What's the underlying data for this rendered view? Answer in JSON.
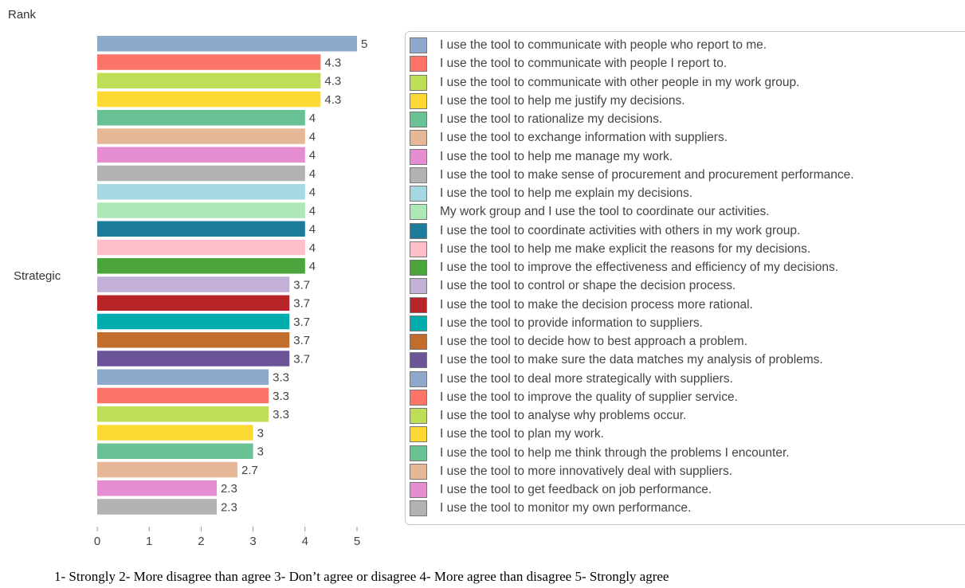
{
  "chart_data": {
    "type": "bar",
    "orientation": "horizontal",
    "ylabel": "Rank",
    "category_axis_label": "Strategic",
    "xlim": [
      0,
      5
    ],
    "xticks": [
      "0",
      "1",
      "2",
      "3",
      "4",
      "5"
    ],
    "grid": false,
    "legend_placement": "right",
    "series": [
      {
        "name": "I use the tool to communicate with people who report to me.",
        "value": 5,
        "label": "5",
        "color": "#8ea9cc"
      },
      {
        "name": "I use the tool to communicate with people I report to.",
        "value": 4.3,
        "label": "4.3",
        "color": "#fd7468"
      },
      {
        "name": "I use the tool to communicate with other people in my work group.",
        "value": 4.3,
        "label": "4.3",
        "color": "#bfde57"
      },
      {
        "name": "I use the tool to help me justify my decisions.",
        "value": 4.3,
        "label": "4.3",
        "color": "#fdda33"
      },
      {
        "name": "I use the tool to rationalize my decisions.",
        "value": 4,
        "label": "4",
        "color": "#68c294"
      },
      {
        "name": "I use the tool to exchange information with suppliers.",
        "value": 4,
        "label": "4",
        "color": "#e6b897"
      },
      {
        "name": "I use the tool to help me manage my work.",
        "value": 4,
        "label": "4",
        "color": "#e58dd0"
      },
      {
        "name": "I use the tool to make sense of procurement and procurement performance.",
        "value": 4,
        "label": "4",
        "color": "#b2b2b2"
      },
      {
        "name": "I use the tool to help me explain my decisions.",
        "value": 4,
        "label": "4",
        "color": "#a6d8e3"
      },
      {
        "name": "My work group and I use the tool to coordinate our activities.",
        "value": 4,
        "label": "4",
        "color": "#ade8b6"
      },
      {
        "name": "I use the tool to coordinate activities with others in my work group.",
        "value": 4,
        "label": "4",
        "color": "#1e7c9b"
      },
      {
        "name": "I use the tool to help me make explicit the reasons for my decisions.",
        "value": 4,
        "label": "4",
        "color": "#ffc0cc"
      },
      {
        "name": "I use the tool to improve the effectiveness and efficiency of my decisions.",
        "value": 4,
        "label": "4",
        "color": "#4ba43c"
      },
      {
        "name": "I use the tool to control or shape the decision process.",
        "value": 3.7,
        "label": "3.7",
        "color": "#c2b0d6"
      },
      {
        "name": "I use the tool to make the decision process more rational.",
        "value": 3.7,
        "label": "3.7",
        "color": "#b82428"
      },
      {
        "name": "I use the tool to provide information to suppliers.",
        "value": 3.7,
        "label": "3.7",
        "color": "#00acac"
      },
      {
        "name": "I use the tool to decide how to best approach a problem.",
        "value": 3.7,
        "label": "3.7",
        "color": "#c36d2c"
      },
      {
        "name": "I use the tool to make sure the data matches my analysis of problems.",
        "value": 3.7,
        "label": "3.7",
        "color": "#6b5598"
      },
      {
        "name": "I use the tool to deal more strategically with suppliers.",
        "value": 3.3,
        "label": "3.3",
        "color": "#8ea9cc"
      },
      {
        "name": "I use the tool to improve the quality of supplier service.",
        "value": 3.3,
        "label": "3.3",
        "color": "#fd7468"
      },
      {
        "name": "I use the tool to analyse why problems occur.",
        "value": 3.3,
        "label": "3.3",
        "color": "#bfde57"
      },
      {
        "name": "I use the tool to plan my work.",
        "value": 3,
        "label": "3",
        "color": "#fdda33"
      },
      {
        "name": "I use the tool to help me think through the problems I encounter.",
        "value": 3,
        "label": "3",
        "color": "#68c294"
      },
      {
        "name": "I use the tool to more innovatively deal with suppliers.",
        "value": 2.7,
        "label": "2.7",
        "color": "#e6b897"
      },
      {
        "name": "I use the tool to get feedback on job performance.",
        "value": 2.3,
        "label": "2.3",
        "color": "#e58dd0"
      },
      {
        "name": "I use the tool to monitor my own performance.",
        "value": 2.3,
        "label": "2.3",
        "color": "#b2b2b2"
      }
    ],
    "footnote": "1- Strongly 2- More disagree than agree   3- Don’t agree or disagree   4- More agree than disagree    5- Strongly agree"
  }
}
